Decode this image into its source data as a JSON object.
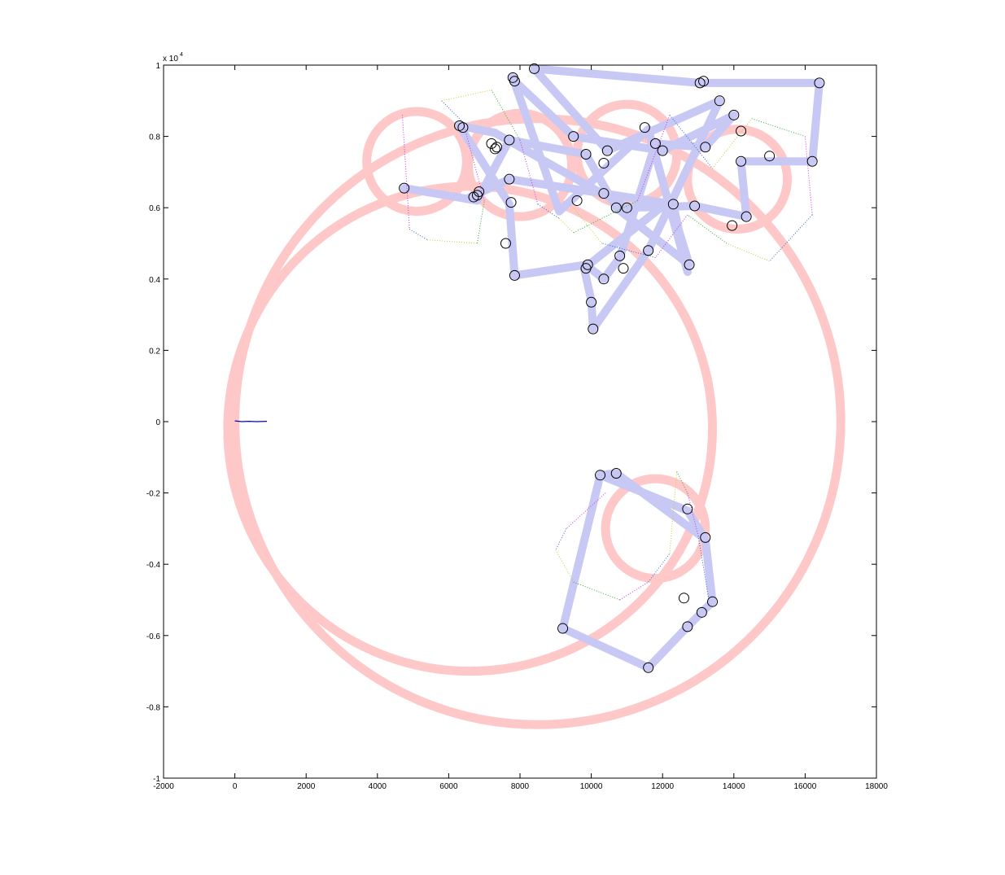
{
  "chart_data": {
    "type": "line",
    "title": "",
    "xlabel": "",
    "ylabel": "",
    "xlim": [
      -2000,
      18000
    ],
    "ylim": [
      -1,
      1
    ],
    "y_exponent_label": "x 10",
    "y_exponent_power": "4",
    "x_ticks": [
      -2000,
      0,
      2000,
      4000,
      6000,
      8000,
      10000,
      12000,
      14000,
      16000,
      18000
    ],
    "x_tick_labels": [
      "-2000",
      "0",
      "2000",
      "4000",
      "6000",
      "8000",
      "10000",
      "12000",
      "14000",
      "16000",
      "18000"
    ],
    "y_ticks": [
      -1,
      -0.8,
      -0.6,
      -0.4,
      -0.2,
      0,
      0.2,
      0.4,
      0.6,
      0.8,
      1
    ],
    "y_tick_labels": [
      "-1",
      "-0.8",
      "-0.6",
      "-0.4",
      "-0.2",
      "0",
      "0.2",
      "0.4",
      "0.6",
      "0.8",
      "1"
    ],
    "grid": false,
    "legend": "none",
    "colors": {
      "circles": "#ffc8c8",
      "path": "#c8c8f5",
      "markers": "#000000",
      "start_line": "#0000cc",
      "dotted": [
        "#33aa33",
        "#cc33cc",
        "#3366cc",
        "#cccc33"
      ]
    },
    "series": [
      {
        "style": "thick-pink-circles",
        "circles": [
          {
            "cx": 6600,
            "cy": -0.02,
            "r": 6800
          },
          {
            "cx": 8500,
            "cy": 0.0,
            "r": 8500
          },
          {
            "cx": 5100,
            "cy": 0.73,
            "r": 1400
          },
          {
            "cx": 8000,
            "cy": 0.72,
            "r": 1450
          },
          {
            "cx": 11000,
            "cy": 0.75,
            "r": 1400
          },
          {
            "cx": 14100,
            "cy": 0.68,
            "r": 1400
          },
          {
            "cx": 11800,
            "cy": -0.3,
            "r": 1400
          }
        ]
      },
      {
        "style": "thick-blue-path",
        "points": [
          [
            4750,
            0.655
          ],
          [
            6800,
            0.62
          ],
          [
            7700,
            0.79
          ],
          [
            9850,
            0.75
          ],
          [
            10700,
            0.6
          ],
          [
            12750,
            0.44
          ],
          [
            12200,
            0.62
          ],
          [
            9800,
            0.43
          ],
          [
            10000,
            0.34
          ],
          [
            10050,
            0.26
          ],
          [
            11600,
            0.48
          ],
          [
            13600,
            0.9
          ],
          [
            10450,
            0.76
          ],
          [
            8400,
            0.99
          ],
          [
            13050,
            0.95
          ],
          [
            16400,
            0.95
          ],
          [
            16200,
            0.73
          ],
          [
            14200,
            0.73
          ],
          [
            14350,
            0.575
          ],
          [
            12900,
            0.605
          ],
          [
            11000,
            0.6
          ],
          [
            7300,
            0.81
          ],
          [
            6300,
            0.83
          ],
          [
            7700,
            0.61
          ],
          [
            7850,
            0.41
          ],
          [
            9850,
            0.44
          ],
          [
            10350,
            0.4
          ],
          [
            10800,
            0.46
          ],
          [
            11800,
            0.78
          ],
          [
            13200,
            0.77
          ],
          [
            14000,
            0.86
          ],
          [
            12000,
            0.76
          ],
          [
            9500,
            0.8
          ],
          [
            7850,
            0.955
          ],
          [
            7800,
            0.965
          ],
          [
            9100,
            0.59
          ],
          [
            11600,
            0.82
          ],
          [
            12700,
            0.42
          ],
          [
            12300,
            0.61
          ],
          [
            10350,
            0.64
          ],
          [
            7700,
            0.68
          ],
          [
            6500,
            0.625
          ]
        ]
      },
      {
        "style": "thick-blue-path",
        "points": [
          [
            10250,
            -0.15
          ],
          [
            12700,
            -0.25
          ],
          [
            13200,
            -0.33
          ],
          [
            13400,
            -0.505
          ],
          [
            12700,
            -0.575
          ],
          [
            11600,
            -0.69
          ],
          [
            9200,
            -0.58
          ],
          [
            10250,
            -0.15
          ],
          [
            10700,
            -0.145
          ],
          [
            13200,
            -0.33
          ]
        ]
      },
      {
        "style": "blue-start-line",
        "points": [
          [
            0,
            0.002
          ],
          [
            200,
            0.0
          ],
          [
            400,
            0.001
          ],
          [
            600,
            0.0
          ],
          [
            900,
            0.001
          ]
        ]
      },
      {
        "style": "dotted-curves",
        "points": [
          [
            4700,
            0.86
          ],
          [
            4900,
            0.54
          ],
          [
            5400,
            0.51
          ],
          [
            6800,
            0.5
          ],
          [
            7000,
            0.62
          ],
          [
            6400,
            0.84
          ],
          [
            5800,
            0.9
          ],
          [
            7200,
            0.93
          ],
          [
            8000,
            0.79
          ],
          [
            8500,
            0.61
          ],
          [
            9100,
            0.57
          ],
          [
            9500,
            0.53
          ],
          [
            11300,
            0.62
          ],
          [
            12200,
            0.86
          ],
          [
            13400,
            0.71
          ],
          [
            14500,
            0.85
          ],
          [
            16000,
            0.8
          ],
          [
            16200,
            0.58
          ],
          [
            15000,
            0.45
          ],
          [
            13800,
            0.5
          ],
          [
            12700,
            0.58
          ],
          [
            11800,
            0.46
          ],
          [
            10300,
            0.5
          ],
          [
            9500,
            0.6
          ]
        ]
      },
      {
        "style": "dotted-curves",
        "points": [
          [
            10400,
            -0.2
          ],
          [
            9300,
            -0.3
          ],
          [
            9000,
            -0.36
          ],
          [
            9500,
            -0.45
          ],
          [
            10800,
            -0.5
          ],
          [
            11600,
            -0.45
          ],
          [
            12200,
            -0.37
          ],
          [
            12400,
            -0.14
          ],
          [
            12700,
            -0.2
          ],
          [
            13000,
            -0.32
          ],
          [
            13300,
            -0.5
          ]
        ]
      },
      {
        "style": "circle-markers",
        "points": [
          [
            4750,
            0.655
          ],
          [
            6300,
            0.83
          ],
          [
            6400,
            0.825
          ],
          [
            6700,
            0.63
          ],
          [
            6800,
            0.635
          ],
          [
            6850,
            0.645
          ],
          [
            7200,
            0.78
          ],
          [
            7300,
            0.765
          ],
          [
            7350,
            0.77
          ],
          [
            7700,
            0.79
          ],
          [
            7750,
            0.615
          ],
          [
            7600,
            0.5
          ],
          [
            7700,
            0.68
          ],
          [
            7850,
            0.41
          ],
          [
            7850,
            0.955
          ],
          [
            7800,
            0.965
          ],
          [
            8400,
            0.99
          ],
          [
            9500,
            0.8
          ],
          [
            9600,
            0.62
          ],
          [
            9850,
            0.75
          ],
          [
            9850,
            0.43
          ],
          [
            9900,
            0.44
          ],
          [
            10000,
            0.335
          ],
          [
            10050,
            0.26
          ],
          [
            10350,
            0.4
          ],
          [
            10350,
            0.725
          ],
          [
            10350,
            0.64
          ],
          [
            10450,
            0.76
          ],
          [
            10700,
            0.6
          ],
          [
            10800,
            0.465
          ],
          [
            10900,
            0.43
          ],
          [
            11000,
            0.6
          ],
          [
            11500,
            0.825
          ],
          [
            11600,
            0.48
          ],
          [
            11800,
            0.78
          ],
          [
            12000,
            0.76
          ],
          [
            12300,
            0.61
          ],
          [
            12750,
            0.44
          ],
          [
            12900,
            0.605
          ],
          [
            13050,
            0.95
          ],
          [
            13150,
            0.955
          ],
          [
            13200,
            0.77
          ],
          [
            13600,
            0.9
          ],
          [
            13950,
            0.55
          ],
          [
            14000,
            0.86
          ],
          [
            14200,
            0.73
          ],
          [
            14200,
            0.815
          ],
          [
            14350,
            0.575
          ],
          [
            15000,
            0.745
          ],
          [
            16200,
            0.73
          ],
          [
            16400,
            0.95
          ],
          [
            10250,
            -0.15
          ],
          [
            10700,
            -0.145
          ],
          [
            12700,
            -0.245
          ],
          [
            13200,
            -0.325
          ],
          [
            12600,
            -0.495
          ],
          [
            13400,
            -0.505
          ],
          [
            13100,
            -0.535
          ],
          [
            12700,
            -0.575
          ],
          [
            11600,
            -0.69
          ],
          [
            9200,
            -0.58
          ]
        ]
      }
    ]
  }
}
